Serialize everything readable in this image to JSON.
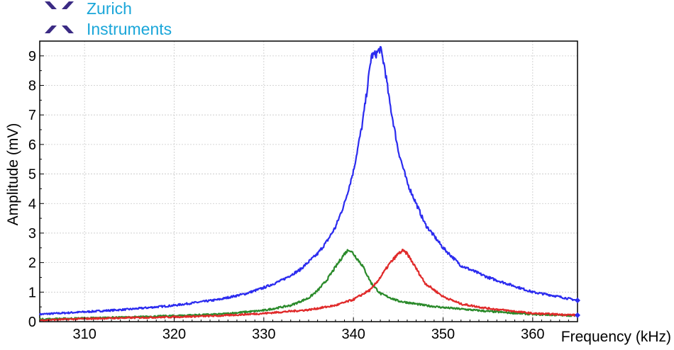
{
  "brand": {
    "line1": "Zurich",
    "line2": "Instruments",
    "logo_icon": "zurich-instruments-x-logo",
    "logo_color": "#3b2b84",
    "text_color": "#1aa6d9"
  },
  "chart_data": {
    "type": "line",
    "title": "",
    "xlabel": "Frequency (kHz)",
    "ylabel": "Amplitude (mV)",
    "xlim": [
      305,
      365
    ],
    "ylim": [
      0,
      9.5
    ],
    "x_ticks": [
      310,
      320,
      330,
      340,
      350,
      360
    ],
    "y_ticks": [
      0,
      1,
      2,
      3,
      4,
      5,
      6,
      7,
      8,
      9
    ],
    "grid": true,
    "legend": "none",
    "series": [
      {
        "color": "#2b2bef",
        "x": [
          305,
          310,
          315,
          320,
          325,
          328,
          330,
          332,
          334,
          336,
          337,
          338,
          339,
          340,
          341,
          341.5,
          342,
          342.5,
          343,
          343.5,
          344,
          345,
          346,
          347,
          348,
          350,
          352,
          355,
          358,
          360,
          362,
          365
        ],
        "y": [
          0.25,
          0.33,
          0.42,
          0.55,
          0.75,
          0.95,
          1.15,
          1.4,
          1.75,
          2.3,
          2.7,
          3.2,
          4.0,
          5.1,
          6.7,
          7.8,
          9.0,
          9.05,
          9.25,
          8.6,
          7.5,
          5.8,
          4.7,
          4.0,
          3.3,
          2.5,
          1.9,
          1.5,
          1.2,
          1.0,
          0.9,
          0.72
        ]
      },
      {
        "color": "#2a8a2a",
        "x": [
          305,
          310,
          315,
          320,
          325,
          330,
          333,
          335,
          336,
          337,
          338,
          339,
          339.5,
          340,
          341,
          342,
          343,
          345,
          348,
          350,
          355,
          360,
          365
        ],
        "y": [
          0.08,
          0.12,
          0.15,
          0.2,
          0.25,
          0.38,
          0.55,
          0.8,
          1.05,
          1.4,
          1.85,
          2.3,
          2.45,
          2.3,
          1.9,
          1.3,
          0.95,
          0.7,
          0.55,
          0.48,
          0.35,
          0.25,
          0.2
        ]
      },
      {
        "color": "#e02a2a",
        "x": [
          305,
          310,
          315,
          320,
          325,
          330,
          335,
          338,
          340,
          342,
          343,
          344,
          345,
          345.5,
          346,
          347,
          348,
          350,
          352,
          355,
          358,
          360,
          365
        ],
        "y": [
          0.05,
          0.1,
          0.13,
          0.16,
          0.2,
          0.28,
          0.4,
          0.55,
          0.75,
          1.1,
          1.5,
          1.95,
          2.3,
          2.4,
          2.3,
          1.8,
          1.3,
          0.85,
          0.6,
          0.45,
          0.35,
          0.28,
          0.22
        ]
      }
    ]
  }
}
